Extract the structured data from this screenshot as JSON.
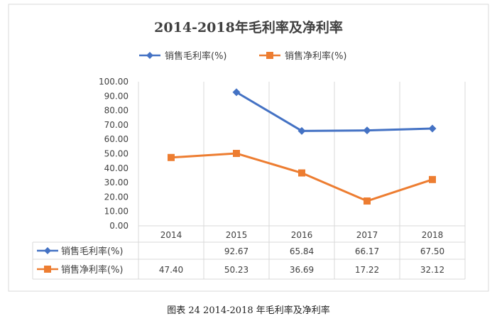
{
  "caption": "图表 24 2014-2018 年毛利率及净利率",
  "colors": {
    "gross": "#4472C4",
    "net": "#ED7D31",
    "grid": "#D9D9D9",
    "text": "#404040"
  },
  "chart_data": {
    "type": "line",
    "title": "2014-2018年毛利率及净利率",
    "legend_position": "top",
    "categories": [
      "2014",
      "2015",
      "2016",
      "2017",
      "2018"
    ],
    "ylim": [
      0,
      100
    ],
    "yticks": [
      "0.00",
      "10.00",
      "20.00",
      "30.00",
      "40.00",
      "50.00",
      "60.00",
      "70.00",
      "80.00",
      "90.00",
      "100.00"
    ],
    "grid": true,
    "data_table": true,
    "series": [
      {
        "name": "销售毛利率(%)",
        "marker": "diamond",
        "color": "#4472C4",
        "values": [
          null,
          92.67,
          65.84,
          66.17,
          67.5
        ],
        "labels": [
          "",
          "92.67",
          "65.84",
          "66.17",
          "67.50"
        ]
      },
      {
        "name": "销售净利率(%)",
        "marker": "square",
        "color": "#ED7D31",
        "values": [
          47.4,
          50.23,
          36.69,
          17.22,
          32.12
        ],
        "labels": [
          "47.40",
          "50.23",
          "36.69",
          "17.22",
          "32.12"
        ]
      }
    ]
  }
}
